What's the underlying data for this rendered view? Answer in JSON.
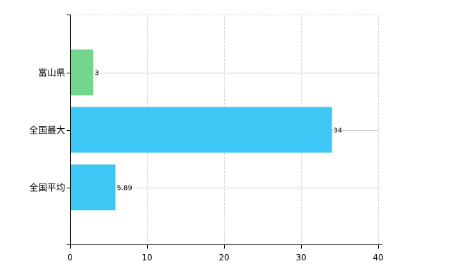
{
  "chart_data": {
    "type": "bar",
    "orientation": "horizontal",
    "categories": [
      "富山県",
      "全国最大",
      "全国平均"
    ],
    "values": [
      3,
      34,
      5.89
    ],
    "data_labels": [
      "3",
      "34",
      "5.89"
    ],
    "bar_colors": [
      "#72d68c",
      "#3ec6f4",
      "#3ec6f4"
    ],
    "xlim": [
      0,
      40
    ],
    "x_ticks": [
      0,
      10,
      20,
      30,
      40
    ],
    "tick_labels": [
      "0",
      "10",
      "20",
      "30",
      "40"
    ],
    "grid": true,
    "grid_color": "#cccccc",
    "axis_color": "#000000",
    "title": "",
    "xlabel": "",
    "ylabel": ""
  }
}
